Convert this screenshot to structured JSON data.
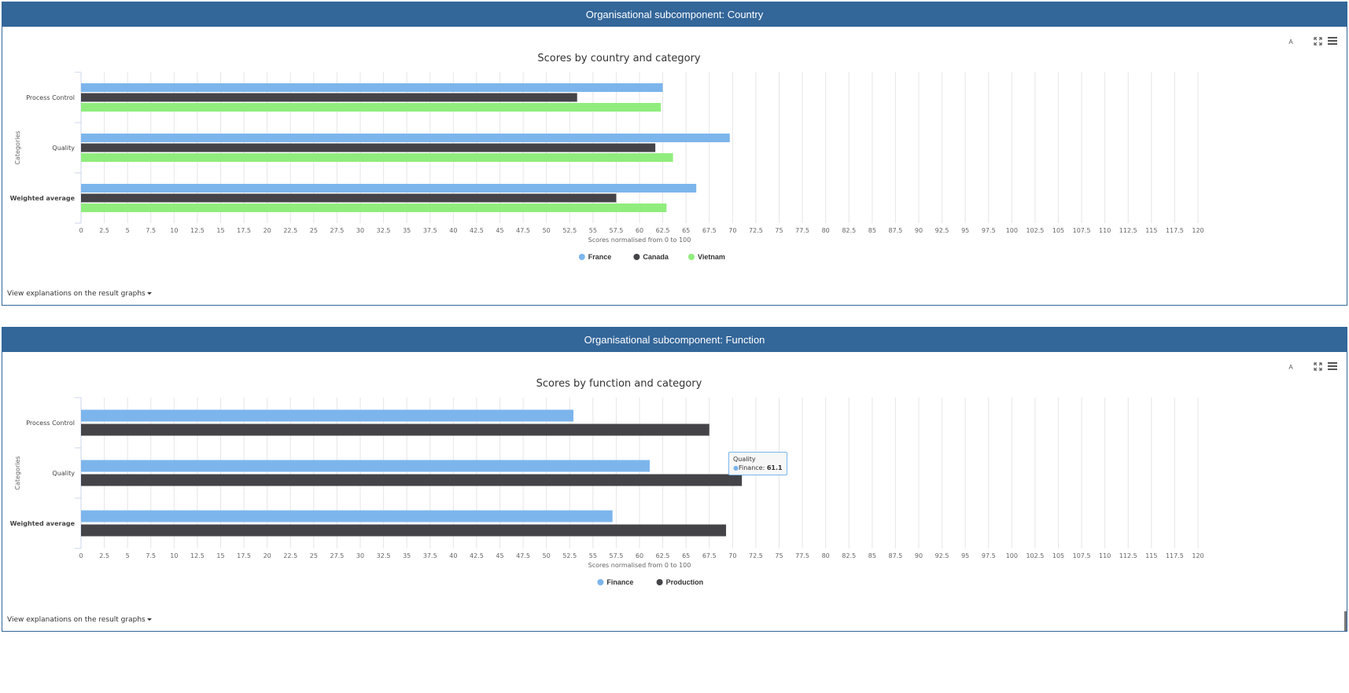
{
  "panels": [
    {
      "header": "Organisational subcomponent: Country",
      "link_label": "View explanations on the result graphs",
      "lang_label": "A"
    },
    {
      "header": "Organisational subcomponent: Function",
      "link_label": "View explanations on the result graphs",
      "lang_label": "A"
    }
  ],
  "tooltip": {
    "category": "Quality",
    "series": "Finance",
    "value": "61.1"
  },
  "chart_data": [
    {
      "type": "bar",
      "orientation": "horizontal",
      "title": "Scores by country and category",
      "xlabel": "Scores normalised from 0 to 100",
      "ylabel": "Categories",
      "xlim": [
        0,
        120
      ],
      "tick_step": 2.5,
      "grid": true,
      "legend_placement": "bottom-center",
      "categories": [
        "Process Control",
        "Quality",
        "Weighted average"
      ],
      "series": [
        {
          "name": "France",
          "color": "#7cb5ec",
          "values": [
            62.5,
            69.7,
            66.1
          ]
        },
        {
          "name": "Canada",
          "color": "#434348",
          "values": [
            53.3,
            61.7,
            57.5
          ]
        },
        {
          "name": "Vietnam",
          "color": "#90ed7d",
          "values": [
            62.3,
            63.6,
            62.9
          ]
        }
      ]
    },
    {
      "type": "bar",
      "orientation": "horizontal",
      "title": "Scores by function and category",
      "xlabel": "Scores normalised from 0 to 100",
      "ylabel": "Categories",
      "xlim": [
        0,
        120
      ],
      "tick_step": 2.5,
      "grid": true,
      "legend_placement": "bottom-center",
      "categories": [
        "Process Control",
        "Quality",
        "Weighted average"
      ],
      "series": [
        {
          "name": "Finance",
          "color": "#7cb5ec",
          "values": [
            52.9,
            61.1,
            57.1
          ]
        },
        {
          "name": "Production",
          "color": "#434348",
          "values": [
            67.5,
            71.0,
            69.3
          ]
        }
      ]
    }
  ]
}
